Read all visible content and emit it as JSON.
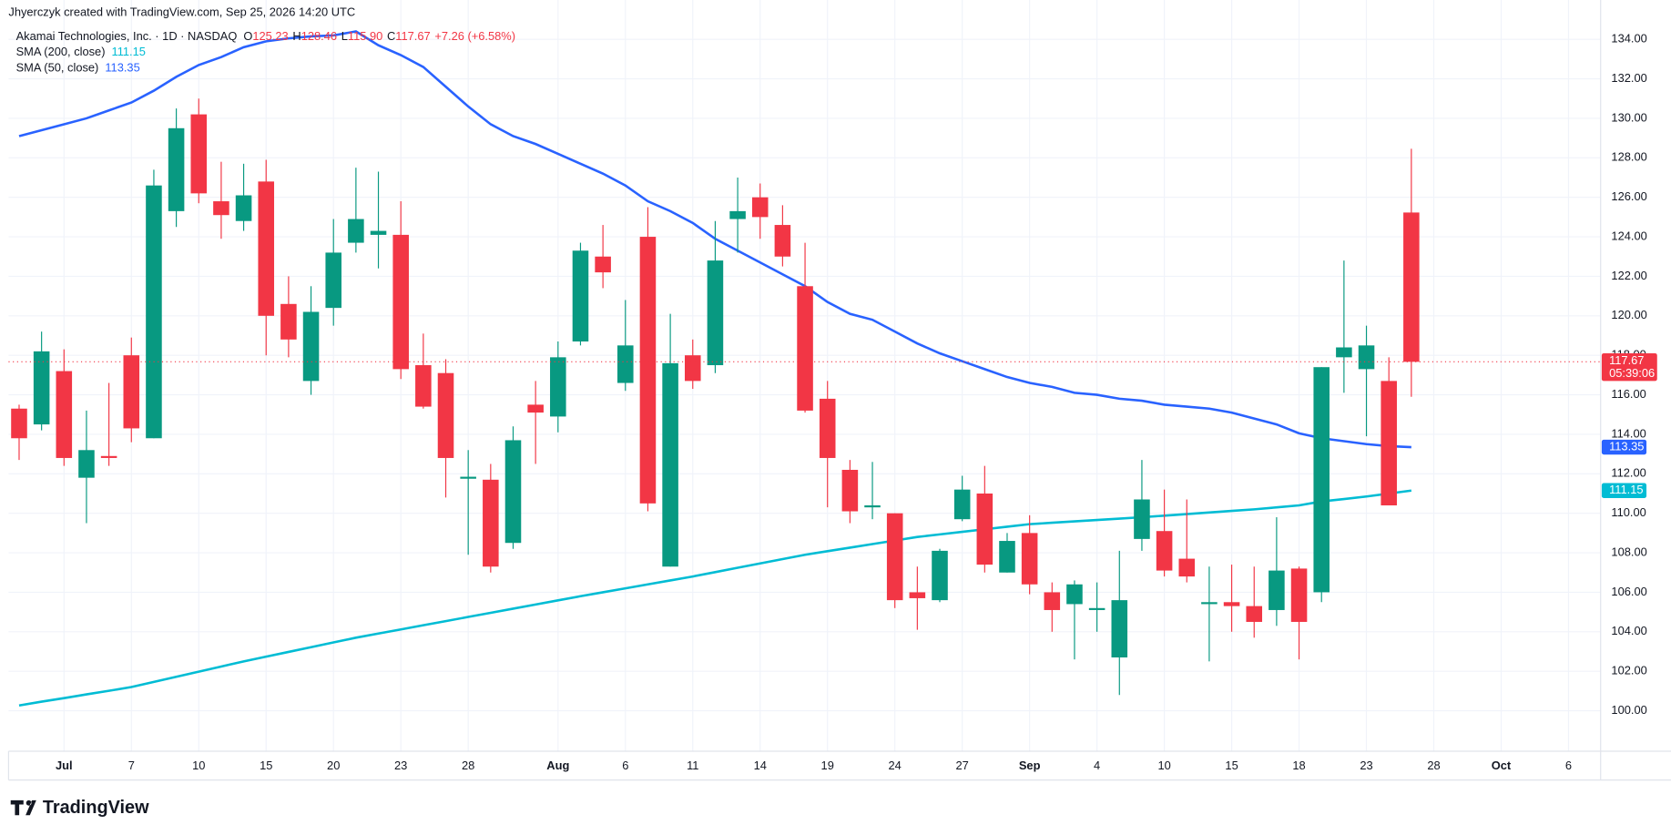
{
  "header": {
    "credit": "Jhyerczyk created with TradingView.com, Sep 25, 2026 14:20 UTC"
  },
  "legend": {
    "symbol": "Akamai Technologies, Inc. · 1D · NASDAQ",
    "ohlc": [
      {
        "key": "O",
        "text": "125.23"
      },
      {
        "key": "H",
        "text": "128.46"
      },
      {
        "key": "L",
        "text": "115.90"
      },
      {
        "key": "C",
        "text": "117.67"
      }
    ],
    "change": "+7.26 (+6.58%)"
  },
  "footer": {
    "logo": "TradingView"
  },
  "chart_data": {
    "type": "candlestick",
    "up_color": "#089981",
    "down_color": "#f23645",
    "categories": [
      "2026-06-29",
      "2026-06-30",
      "2026-07-01",
      "2026-07-02",
      "2026-07-06",
      "2026-07-07",
      "2026-07-08",
      "2026-07-09",
      "2026-07-10",
      "2026-07-13",
      "2026-07-14",
      "2026-07-15",
      "2026-07-16",
      "2026-07-17",
      "2026-07-20",
      "2026-07-21",
      "2026-07-22",
      "2026-07-23",
      "2026-07-24",
      "2026-07-27",
      "2026-07-28",
      "2026-07-29",
      "2026-07-30",
      "2026-07-31",
      "2026-08-03",
      "2026-08-04",
      "2026-08-05",
      "2026-08-06",
      "2026-08-07",
      "2026-08-10",
      "2026-08-11",
      "2026-08-12",
      "2026-08-13",
      "2026-08-14",
      "2026-08-17",
      "2026-08-18",
      "2026-08-19",
      "2026-08-20",
      "2026-08-21",
      "2026-08-24",
      "2026-08-25",
      "2026-08-26",
      "2026-08-27",
      "2026-08-28",
      "2026-08-31",
      "2026-09-01",
      "2026-09-02",
      "2026-09-03",
      "2026-09-04",
      "2026-09-08",
      "2026-09-09",
      "2026-09-10",
      "2026-09-11",
      "2026-09-14",
      "2026-09-15",
      "2026-09-16",
      "2026-09-17",
      "2026-09-18",
      "2026-09-21",
      "2026-09-22",
      "2026-09-23",
      "2026-09-24",
      "2026-09-25"
    ],
    "open": [
      115.3,
      114.5,
      117.2,
      111.8,
      112.9,
      118,
      113.8,
      125.3,
      130.2,
      125.8,
      124.8,
      126.8,
      120.6,
      116.7,
      120.4,
      123.7,
      124.1,
      124.1,
      117.5,
      117.1,
      111.75,
      111.7,
      108.5,
      115.5,
      114.9,
      118.7,
      123,
      116.6,
      124,
      107.3,
      118,
      117.5,
      124.9,
      126,
      124.6,
      121.5,
      115.8,
      112.2,
      110.3,
      110,
      106,
      105.6,
      109.7,
      111,
      107,
      109,
      106,
      105.4,
      105.1,
      102.7,
      108.7,
      109.1,
      107.7,
      105.4,
      105.5,
      105.3,
      105.1,
      107.2,
      106,
      117.9,
      117.3,
      116.7,
      125.23
    ],
    "high": [
      115.5,
      119.2,
      118.3,
      115.2,
      116.6,
      118.9,
      127.4,
      130.5,
      131,
      127.8,
      127.7,
      127.9,
      122,
      121.5,
      124.9,
      127.5,
      127.3,
      125.8,
      119.1,
      117.8,
      113.2,
      112.5,
      114.4,
      116.7,
      118.7,
      123.7,
      124.6,
      120.8,
      125.5,
      120.1,
      118.8,
      124.8,
      127,
      126.7,
      125.6,
      123.7,
      116.7,
      112.7,
      112.6,
      110,
      107.3,
      108.2,
      111.9,
      112.4,
      109,
      109.9,
      106.5,
      106.6,
      106.5,
      108.1,
      112.7,
      111.2,
      110.7,
      107.3,
      107.4,
      107.3,
      109.8,
      107.3,
      117.4,
      122.8,
      119.5,
      117.9,
      128.46
    ],
    "low": [
      112.7,
      114.2,
      112.4,
      109.5,
      112.4,
      113.6,
      113.8,
      124.5,
      125.7,
      123.9,
      124.3,
      118,
      117.9,
      116,
      119.5,
      123.2,
      122.4,
      116.8,
      115.3,
      110.8,
      107.9,
      107,
      108.2,
      112.5,
      114.1,
      118.5,
      121.4,
      116.2,
      110.1,
      107.3,
      116.3,
      117.1,
      123.2,
      123.9,
      122.5,
      115.1,
      110.3,
      109.5,
      109.7,
      105.2,
      104.1,
      105.5,
      109.6,
      107,
      107,
      105.9,
      104,
      102.6,
      104,
      100.8,
      108.1,
      106.8,
      106.5,
      102.5,
      104,
      103.7,
      104.3,
      102.6,
      105.5,
      116.1,
      113.9,
      110.4,
      115.9
    ],
    "close": [
      113.8,
      118.2,
      112.8,
      113.2,
      112.8,
      114.3,
      126.6,
      129.5,
      126.2,
      125.1,
      126.1,
      120,
      118.8,
      120.2,
      123.2,
      124.9,
      124.3,
      117.3,
      115.4,
      112.8,
      111.85,
      107.3,
      113.7,
      115.1,
      117.9,
      123.3,
      122.2,
      118.5,
      110.5,
      117.6,
      116.7,
      122.8,
      125.3,
      125,
      123,
      115.2,
      112.8,
      110.1,
      110.4,
      105.6,
      105.7,
      108.1,
      111.2,
      107.4,
      108.6,
      106.4,
      105.1,
      106.4,
      105.2,
      105.6,
      110.7,
      107.1,
      106.8,
      105.5,
      105.3,
      104.5,
      107.1,
      104.5,
      117.4,
      118.4,
      118.5,
      110.4,
      117.67
    ],
    "last_price_countdown": "05:39:06",
    "overlays": [
      {
        "name": "SMA (200, close)",
        "color": "#00bcd4",
        "values": [
          100.27,
          100.46,
          100.64,
          100.83,
          101.01,
          101.2,
          101.46,
          101.72,
          101.98,
          102.24,
          102.5,
          102.74,
          102.98,
          103.22,
          103.46,
          103.7,
          103.91,
          104.12,
          104.33,
          104.54,
          104.75,
          104.96,
          105.17,
          105.38,
          105.59,
          105.8,
          106.0,
          106.2,
          106.4,
          106.6,
          106.8,
          107.02,
          107.24,
          107.46,
          107.68,
          107.9,
          108.08,
          108.26,
          108.44,
          108.62,
          108.8,
          108.93,
          109.06,
          109.19,
          109.32,
          109.45,
          109.52,
          109.59,
          109.66,
          109.73,
          109.8,
          109.88,
          109.96,
          110.04,
          110.12,
          110.2,
          110.3,
          110.4,
          110.6,
          110.72,
          110.85,
          111.0,
          111.15
        ]
      },
      {
        "name": "SMA (50, close)",
        "color": "#2962ff",
        "values": [
          129.1,
          129.4,
          129.7,
          130,
          130.4,
          130.8,
          131.4,
          132.1,
          132.7,
          133.1,
          133.6,
          133.9,
          134.05,
          134.15,
          134.2,
          134.4,
          133.7,
          133.2,
          132.6,
          131.6,
          130.6,
          129.7,
          129.1,
          128.7,
          128.2,
          127.7,
          127.2,
          126.6,
          125.8,
          125.3,
          124.7,
          123.9,
          123.3,
          122.7,
          122.1,
          121.5,
          120.7,
          120.1,
          119.8,
          119.2,
          118.6,
          118.1,
          117.7,
          117.3,
          116.9,
          116.6,
          116.4,
          116.1,
          116,
          115.8,
          115.7,
          115.5,
          115.4,
          115.3,
          115.1,
          114.8,
          114.5,
          114.05,
          113.8,
          113.65,
          113.5,
          113.4,
          113.35
        ]
      }
    ],
    "xlim": [
      -0.47,
      70.43
    ],
    "xticks": [
      {
        "value": 2,
        "label": "Jul"
      },
      {
        "value": 5,
        "label": "7"
      },
      {
        "value": 8,
        "label": "10"
      },
      {
        "value": 11,
        "label": "15"
      },
      {
        "value": 14,
        "label": "20"
      },
      {
        "value": 17,
        "label": "23"
      },
      {
        "value": 20,
        "label": "28"
      },
      {
        "value": 24,
        "label": "Aug"
      },
      {
        "value": 27,
        "label": "6"
      },
      {
        "value": 30,
        "label": "11"
      },
      {
        "value": 33,
        "label": "14"
      },
      {
        "value": 36,
        "label": "19"
      },
      {
        "value": 39,
        "label": "24"
      },
      {
        "value": 42,
        "label": "27"
      },
      {
        "value": 45,
        "label": "Sep"
      },
      {
        "value": 48,
        "label": "4"
      },
      {
        "value": 51,
        "label": "10"
      },
      {
        "value": 54,
        "label": "15"
      },
      {
        "value": 57,
        "label": "18"
      },
      {
        "value": 60,
        "label": "23"
      },
      {
        "value": 63,
        "label": "28"
      },
      {
        "value": 66,
        "label": "Oct"
      },
      {
        "value": 69,
        "label": "6"
      }
    ],
    "ylim": [
      97.95,
      135.56
    ],
    "yticks": [
      {
        "value": 100,
        "label": "100.00"
      },
      {
        "value": 102,
        "label": "102.00"
      },
      {
        "value": 104,
        "label": "104.00"
      },
      {
        "value": 106,
        "label": "106.00"
      },
      {
        "value": 108,
        "label": "108.00"
      },
      {
        "value": 110,
        "label": "110.00"
      },
      {
        "value": 112,
        "label": "112.00"
      },
      {
        "value": 114,
        "label": "114.00"
      },
      {
        "value": 116,
        "label": "116.00"
      },
      {
        "value": 118,
        "label": "118.00"
      },
      {
        "value": 120,
        "label": "120.00"
      },
      {
        "value": 122,
        "label": "122.00"
      },
      {
        "value": 124,
        "label": "124.00"
      },
      {
        "value": 126,
        "label": "126.00"
      },
      {
        "value": 128,
        "label": "128.00"
      },
      {
        "value": 130,
        "label": "130.00"
      },
      {
        "value": 132,
        "label": "132.00"
      },
      {
        "value": 134,
        "label": "134.00"
      }
    ],
    "grid": true
  }
}
